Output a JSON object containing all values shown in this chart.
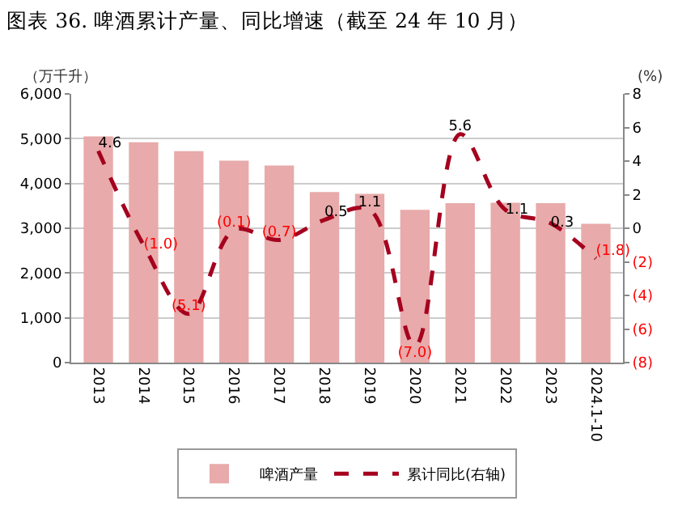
{
  "chart_data": {
    "type": "bar",
    "title": "图表 36. 啤酒累计产量、同比增速（截至 24 年 10 月）",
    "ylabel": "（万千升）",
    "y2label": "(%)",
    "categories": [
      "2013",
      "2014",
      "2015",
      "2016",
      "2017",
      "2018",
      "2019",
      "2020",
      "2021",
      "2022",
      "2023",
      "2024.1-10"
    ],
    "series": [
      {
        "name": "啤酒产量",
        "color": "#e8aaaa",
        "values": [
          5050,
          4920,
          4720,
          4510,
          4400,
          3810,
          3770,
          3410,
          3560,
          3570,
          3560,
          3100
        ]
      },
      {
        "name": "累计同比(右轴)",
        "type": "line",
        "axis": "y2",
        "color": "#a5001e",
        "line_style": "dashed",
        "values": [
          4.6,
          -1.0,
          -5.1,
          -0.1,
          -0.7,
          0.5,
          1.1,
          -7.0,
          5.6,
          1.1,
          0.3,
          -1.8
        ],
        "value_labels": [
          "4.6",
          "(1.0)",
          "(5.1)",
          "(0.1)",
          "(0.7)",
          "0.5",
          "1.1",
          "(7.0)",
          "5.6",
          "1.1",
          "0.3",
          "(1.8)"
        ]
      }
    ],
    "ylim": [
      0,
      6000
    ],
    "yticks": [
      {
        "value": 0,
        "label": "0"
      },
      {
        "value": 1000,
        "label": "1,000"
      },
      {
        "value": 2000,
        "label": "2,000"
      },
      {
        "value": 3000,
        "label": "3,000"
      },
      {
        "value": 4000,
        "label": "4,000"
      },
      {
        "value": 5000,
        "label": "5,000"
      },
      {
        "value": 6000,
        "label": "6,000"
      }
    ],
    "y2lim": [
      -8,
      8
    ],
    "y2ticks": [
      {
        "value": -8,
        "label": "(8)"
      },
      {
        "value": -6,
        "label": "(6)"
      },
      {
        "value": -4,
        "label": "(4)"
      },
      {
        "value": -2,
        "label": "(2)"
      },
      0,
      2,
      4,
      6,
      8
    ],
    "grid": "y",
    "legend": "bottom",
    "marker": "none"
  }
}
